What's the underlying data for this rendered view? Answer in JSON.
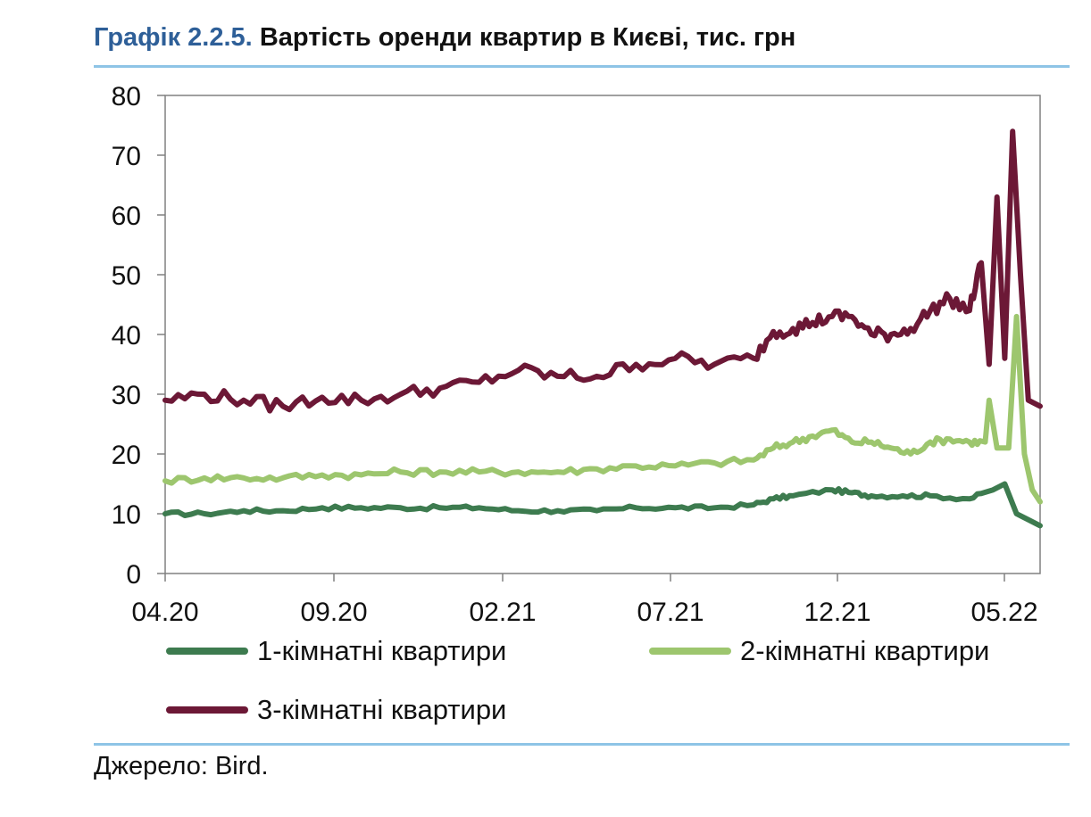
{
  "header": {
    "title_number": "Графік 2.2.5.",
    "title_text": "Вартість оренди квартир в Києві, тис. грн"
  },
  "footer": {
    "source": "Джерело: Bird."
  },
  "chart_data": {
    "type": "line",
    "title": "Вартість оренди квартир в Києві, тис. грн",
    "xlabel": "",
    "ylabel": "",
    "ylim": [
      0,
      80
    ],
    "yticks": [
      0,
      10,
      20,
      30,
      40,
      50,
      60,
      70,
      80
    ],
    "xlim": [
      "2020-04",
      "2022-05"
    ],
    "xticks": [
      "04.20",
      "09.20",
      "02.21",
      "07.21",
      "12.21",
      "05.22"
    ],
    "x_unit": "month (MM.YY)",
    "grid": false,
    "legend_position": "bottom",
    "series": [
      {
        "name": "1-кімнатні квартири",
        "color": "#3d7b4f",
        "x": [
          4.0,
          5.0,
          6.0,
          7.0,
          8.0,
          9.0,
          10.0,
          11.0,
          12.0,
          13.0,
          14.0,
          15.0,
          16.0,
          17.0,
          18.0,
          19.0,
          19.5,
          20.0,
          21.0,
          21.5,
          22.0,
          22.8,
          23.5,
          24.5,
          25.1,
          25.4,
          25.7,
          26.0,
          26.3
        ],
        "y": [
          10,
          10,
          10.5,
          10.5,
          11,
          11,
          11,
          11,
          11,
          10.5,
          10.5,
          10.5,
          11,
          11,
          11,
          11.5,
          12.5,
          13,
          14,
          13.5,
          13,
          13,
          13,
          12.5,
          14,
          15,
          10,
          9,
          8
        ]
      },
      {
        "name": "2-кімнатні квартири",
        "color": "#9dc66e",
        "x": [
          4.0,
          5.0,
          6.0,
          7.0,
          8.0,
          9.0,
          10.0,
          11.0,
          12.0,
          13.0,
          14.0,
          15.0,
          16.0,
          17.0,
          18.0,
          19.0,
          19.5,
          20.0,
          20.5,
          21.0,
          21.5,
          22.0,
          22.5,
          23.0,
          23.5,
          24.0,
          24.5,
          24.9,
          25.0,
          25.2,
          25.5,
          25.7,
          25.9,
          26.1,
          26.3
        ],
        "y": [
          15.5,
          16,
          16,
          16,
          16.5,
          16.5,
          17,
          17,
          17,
          17,
          17,
          17.5,
          18,
          18,
          18.5,
          19,
          21,
          22,
          23,
          24,
          22,
          22,
          21,
          20,
          22,
          22.5,
          22,
          22,
          29,
          21,
          21,
          43,
          20,
          14,
          12
        ]
      },
      {
        "name": "3-кімнатні квартири",
        "color": "#6c1836",
        "x": [
          4.0,
          5.0,
          6.0,
          7.0,
          8.0,
          9.0,
          10.0,
          11.0,
          12.0,
          13.0,
          14.0,
          15.0,
          16.0,
          17.0,
          18.0,
          19.0,
          19.5,
          20.0,
          20.5,
          21.0,
          21.5,
          22.0,
          22.5,
          23.0,
          23.5,
          24.0,
          24.5,
          24.8,
          25.0,
          25.2,
          25.4,
          25.6,
          25.8,
          26.0,
          26.3
        ],
        "y": [
          29,
          30,
          29,
          28,
          29.5,
          29,
          30,
          31,
          32,
          34,
          33,
          33,
          35,
          36,
          35,
          36,
          40.5,
          41,
          42,
          43,
          43,
          40,
          40,
          41,
          44,
          46,
          44,
          52,
          35,
          63,
          36,
          74,
          50,
          29,
          28
        ]
      }
    ]
  }
}
